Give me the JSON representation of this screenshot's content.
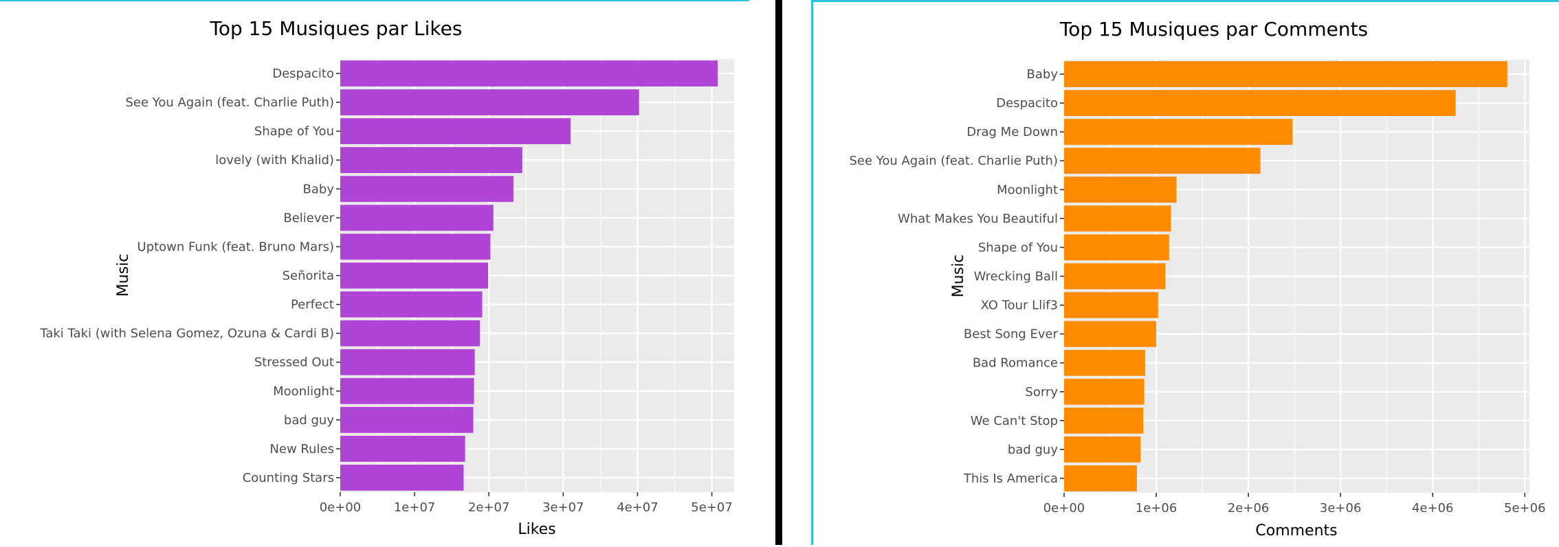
{
  "chart_data": [
    {
      "type": "bar",
      "orientation": "horizontal",
      "title": "Top 15 Musiques par Likes",
      "xlabel": "Likes",
      "ylabel": "Music",
      "xlim": [
        0,
        53000000
      ],
      "xticks": [
        0,
        10000000,
        20000000,
        30000000,
        40000000,
        50000000
      ],
      "xtick_labels": [
        "0e+00",
        "1e+07",
        "2e+07",
        "3e+07",
        "4e+07",
        "5e+07"
      ],
      "bar_color": "#b044d6",
      "panel_bg": "#ebebeb",
      "grid": true,
      "categories": [
        "Despacito",
        "See You Again (feat. Charlie Puth)",
        "Shape of You",
        "lovely (with Khalid)",
        "Baby",
        "Believer",
        "Uptown Funk (feat. Bruno Mars)",
        "Señorita",
        "Perfect",
        "Taki Taki (with Selena Gomez, Ozuna & Cardi B)",
        "Stressed Out",
        "Moonlight",
        "bad guy",
        "New Rules",
        "Counting Stars"
      ],
      "values": [
        50800000,
        40200000,
        31000000,
        24500000,
        23300000,
        20600000,
        20200000,
        19900000,
        19100000,
        18800000,
        18100000,
        18000000,
        17900000,
        16800000,
        16600000
      ]
    },
    {
      "type": "bar",
      "orientation": "horizontal",
      "title": "Top 15 Musiques par Comments",
      "xlabel": "Comments",
      "ylabel": "Music",
      "xlim": [
        0,
        5050000
      ],
      "xticks": [
        0,
        1000000,
        2000000,
        3000000,
        4000000,
        5000000
      ],
      "xtick_labels": [
        "0e+00",
        "1e+06",
        "2e+06",
        "3e+06",
        "4e+06",
        "5e+06"
      ],
      "bar_color": "#ff8c00",
      "panel_bg": "#ebebeb",
      "grid": true,
      "categories": [
        "Baby",
        "Despacito",
        "Drag Me Down",
        "See You Again (feat. Charlie Puth)",
        "Moonlight",
        "What Makes You Beautiful",
        "Shape of You",
        "Wrecking Ball",
        "XO Tour Llif3",
        "Best Song Ever",
        "Bad Romance",
        "Sorry",
        "We Can't Stop",
        "bad guy",
        "This Is America"
      ],
      "values": [
        4810000,
        4250000,
        2480000,
        2130000,
        1220000,
        1160000,
        1140000,
        1100000,
        1020000,
        1000000,
        880000,
        870000,
        860000,
        830000,
        790000
      ]
    }
  ]
}
